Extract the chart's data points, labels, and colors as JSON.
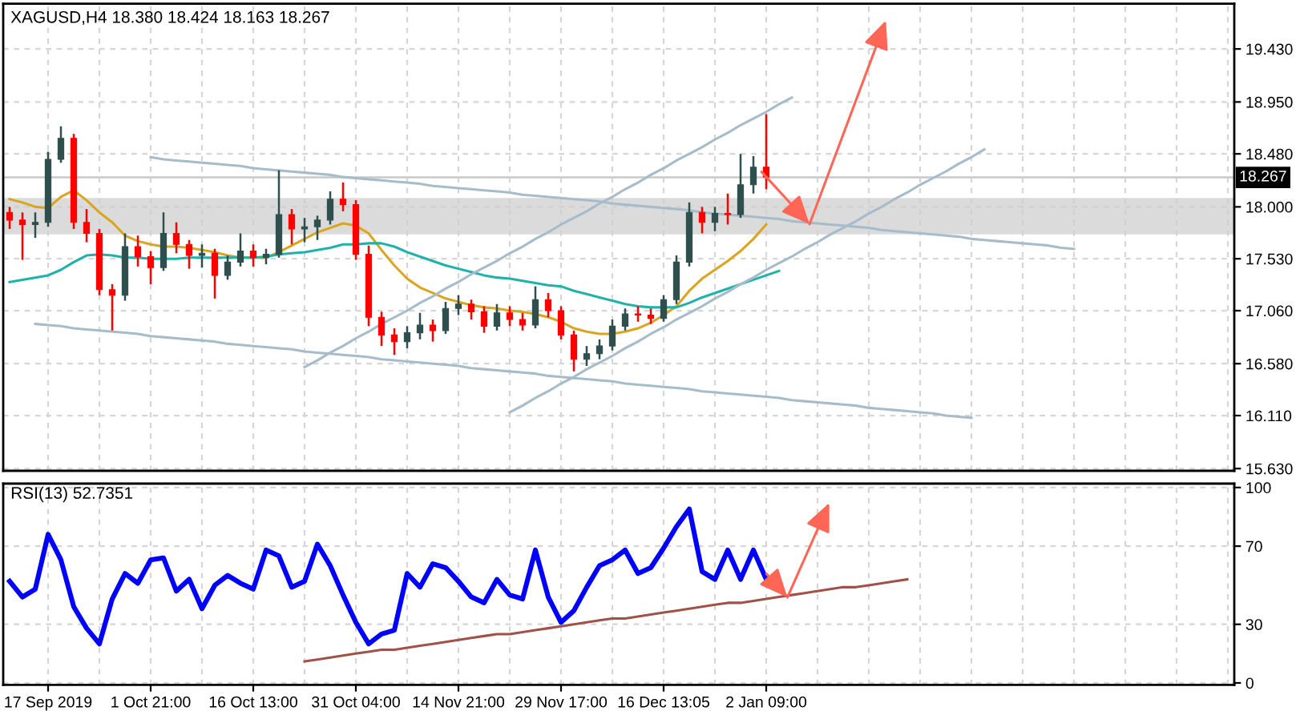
{
  "chart_data": [
    {
      "type": "candlestick",
      "title": "XAGUSD,H4 18.380 18.424 18.163 18.267",
      "categories": [
        null,
        null,
        null,
        null,
        null,
        null,
        null,
        null,
        null,
        null,
        null,
        null,
        null,
        null,
        null,
        null,
        null,
        null,
        null,
        null,
        null,
        null,
        null,
        null,
        null,
        null,
        null,
        null,
        null,
        null,
        null,
        null,
        null,
        null,
        null,
        null,
        null,
        null,
        null,
        null,
        null,
        null,
        null,
        null,
        null,
        null,
        null,
        null,
        null,
        null,
        null,
        null,
        null,
        null,
        null,
        null,
        null,
        null,
        null,
        null,
        null,
        null,
        null,
        null,
        null,
        null,
        null,
        null,
        null,
        null,
        null,
        null,
        null,
        null,
        null,
        null,
        null,
        null,
        null,
        null,
        null,
        null,
        null,
        null,
        null,
        null,
        null,
        null,
        null,
        null,
        null,
        null,
        null,
        null,
        null,
        null
      ],
      "ohlc": [
        [
          17.95,
          18.0,
          17.8,
          17.88
        ],
        [
          17.88,
          17.95,
          17.52,
          17.84
        ],
        [
          17.84,
          17.95,
          17.72,
          17.86
        ],
        [
          17.86,
          18.5,
          17.82,
          18.43
        ],
        [
          18.43,
          18.73,
          18.4,
          18.62
        ],
        [
          18.62,
          18.66,
          17.8,
          17.86
        ],
        [
          17.86,
          17.98,
          17.68,
          17.76
        ],
        [
          17.76,
          17.8,
          17.2,
          17.25
        ],
        [
          17.25,
          17.3,
          16.88,
          17.2
        ],
        [
          17.2,
          17.76,
          17.15,
          17.64
        ],
        [
          17.64,
          17.74,
          17.46,
          17.55
        ],
        [
          17.55,
          17.6,
          17.3,
          17.45
        ],
        [
          17.45,
          17.95,
          17.42,
          17.76
        ],
        [
          17.76,
          17.86,
          17.58,
          17.66
        ],
        [
          17.66,
          17.7,
          17.44,
          17.56
        ],
        [
          17.56,
          17.66,
          17.45,
          17.58
        ],
        [
          17.58,
          17.62,
          17.17,
          17.38
        ],
        [
          17.38,
          17.56,
          17.34,
          17.5
        ],
        [
          17.5,
          17.76,
          17.46,
          17.6
        ],
        [
          17.6,
          17.66,
          17.46,
          17.54
        ],
        [
          17.54,
          17.62,
          17.48,
          17.57
        ],
        [
          17.57,
          18.33,
          17.54,
          17.93
        ],
        [
          17.93,
          17.98,
          17.66,
          17.8
        ],
        [
          17.8,
          17.9,
          17.68,
          17.82
        ],
        [
          17.82,
          17.92,
          17.7,
          17.88
        ],
        [
          17.88,
          18.14,
          17.84,
          18.07
        ],
        [
          18.07,
          18.22,
          17.96,
          18.02
        ],
        [
          18.02,
          18.06,
          17.52,
          17.57
        ],
        [
          17.57,
          17.65,
          16.92,
          17.0
        ],
        [
          17.0,
          17.05,
          16.74,
          16.84
        ],
        [
          16.84,
          16.9,
          16.66,
          16.78
        ],
        [
          16.78,
          16.92,
          16.72,
          16.86
        ],
        [
          16.86,
          17.04,
          16.8,
          16.93
        ],
        [
          16.93,
          16.98,
          16.78,
          16.88
        ],
        [
          16.88,
          17.14,
          16.85,
          17.08
        ],
        [
          17.08,
          17.2,
          17.02,
          17.12
        ],
        [
          17.12,
          17.16,
          16.98,
          17.05
        ],
        [
          17.05,
          17.1,
          16.86,
          16.92
        ],
        [
          16.92,
          17.12,
          16.88,
          17.04
        ],
        [
          17.04,
          17.1,
          16.92,
          16.98
        ],
        [
          16.98,
          17.04,
          16.88,
          16.93
        ],
        [
          16.93,
          17.28,
          16.9,
          17.16
        ],
        [
          17.16,
          17.22,
          17.0,
          17.06
        ],
        [
          17.06,
          17.1,
          16.8,
          16.84
        ],
        [
          16.84,
          16.88,
          16.51,
          16.62
        ],
        [
          16.62,
          16.74,
          16.56,
          16.67
        ],
        [
          16.67,
          16.8,
          16.62,
          16.74
        ],
        [
          16.74,
          16.98,
          16.7,
          16.92
        ],
        [
          16.92,
          17.08,
          16.88,
          17.03
        ],
        [
          17.03,
          17.1,
          16.96,
          17.02
        ],
        [
          17.02,
          17.08,
          16.94,
          16.99
        ],
        [
          16.99,
          17.2,
          16.96,
          17.16
        ],
        [
          17.16,
          17.56,
          17.12,
          17.5
        ],
        [
          17.5,
          18.04,
          17.46,
          17.95
        ],
        [
          17.95,
          18.0,
          17.76,
          17.86
        ],
        [
          17.86,
          18.0,
          17.78,
          17.94
        ],
        [
          17.94,
          18.12,
          17.84,
          17.93
        ],
        [
          17.93,
          18.48,
          17.9,
          18.2
        ],
        [
          18.2,
          18.46,
          18.12,
          18.36
        ],
        [
          18.36,
          18.84,
          18.16,
          18.27
        ],
        null,
        null,
        null,
        null,
        null,
        null,
        null,
        null,
        null,
        null,
        null,
        null,
        null,
        null,
        null,
        null,
        null,
        null,
        null,
        null,
        null,
        null,
        null,
        null,
        null,
        null,
        null,
        null,
        null,
        null,
        null,
        null,
        null,
        null,
        null,
        null
      ],
      "colors": [
        "#ff0000",
        "#ff0000",
        "#2f4f4f",
        "#2f4f4f",
        "#2f4f4f",
        "#ff0000",
        "#ff0000",
        "#ff0000",
        "#ff0000",
        "#2f4f4f",
        "#ff0000",
        "#ff0000",
        "#2f4f4f",
        "#ff0000",
        "#ff0000",
        "#2f4f4f",
        "#ff0000",
        "#2f4f4f",
        "#2f4f4f",
        "#ff0000",
        "#2f4f4f",
        "#2f4f4f",
        "#ff0000",
        "#2f4f4f",
        "#2f4f4f",
        "#2f4f4f",
        "#ff0000",
        "#ff0000",
        "#ff0000",
        "#ff0000",
        "#ff0000",
        "#2f4f4f",
        "#2f4f4f",
        "#ff0000",
        "#2f4f4f",
        "#2f4f4f",
        "#ff0000",
        "#ff0000",
        "#2f4f4f",
        "#ff0000",
        "#ff0000",
        "#2f4f4f",
        "#ff0000",
        "#ff0000",
        "#ff0000",
        "#2f4f4f",
        "#2f4f4f",
        "#2f4f4f",
        "#2f4f4f",
        "#ff0000",
        "#ff0000",
        "#2f4f4f",
        "#2f4f4f",
        "#2f4f4f",
        "#ff0000",
        "#2f4f4f",
        "#ff0000",
        "#2f4f4f",
        "#2f4f4f",
        "#ff0000",
        null,
        null,
        null,
        null,
        null,
        null,
        null,
        null,
        null,
        null,
        null,
        null,
        null,
        null,
        null,
        null,
        null,
        null,
        null,
        null,
        null,
        null,
        null,
        null,
        null,
        null,
        null,
        null,
        null,
        null,
        null,
        null,
        null,
        null,
        null,
        null
      ],
      "series": [
        {
          "type": "line",
          "color": "#daa520",
          "values": [
            18.07,
            18.04,
            18.0,
            17.99,
            18.09,
            18.15,
            18.06,
            17.95,
            17.86,
            17.74,
            17.69,
            17.66,
            17.64,
            17.64,
            17.63,
            17.61,
            17.59,
            17.56,
            17.54,
            17.54,
            17.54,
            17.59,
            17.65,
            17.71,
            17.77,
            17.81,
            17.85,
            17.83,
            17.76,
            17.61,
            17.47,
            17.35,
            17.27,
            17.22,
            17.17,
            17.14,
            17.11,
            17.09,
            17.08,
            17.06,
            17.05,
            17.03,
            17.0,
            16.96,
            16.9,
            16.87,
            16.85,
            16.85,
            16.87,
            16.9,
            16.95,
            17.02,
            17.1,
            17.24,
            17.35,
            17.43,
            17.51,
            17.6,
            17.71,
            17.84,
            null,
            null,
            null,
            null,
            null,
            null,
            null,
            null,
            null,
            null,
            null,
            null,
            null,
            null,
            null,
            null,
            null,
            null,
            null,
            null,
            null,
            null,
            null,
            null,
            null,
            null,
            null,
            null,
            null,
            null,
            null,
            null,
            null,
            null,
            null,
            null
          ]
        },
        {
          "type": "line",
          "color": "#20b2aa",
          "values": [
            17.32,
            17.34,
            17.36,
            17.38,
            17.43,
            17.5,
            17.56,
            17.57,
            17.56,
            17.54,
            17.54,
            17.53,
            17.53,
            17.53,
            17.54,
            17.54,
            17.54,
            17.54,
            17.54,
            17.54,
            17.55,
            17.57,
            17.58,
            17.59,
            17.61,
            17.63,
            17.66,
            17.66,
            17.67,
            17.67,
            17.64,
            17.59,
            17.55,
            17.51,
            17.47,
            17.44,
            17.41,
            17.38,
            17.36,
            17.35,
            17.33,
            17.31,
            17.29,
            17.28,
            17.24,
            17.21,
            17.18,
            17.15,
            17.12,
            17.1,
            17.09,
            17.09,
            17.09,
            17.13,
            17.18,
            17.22,
            17.26,
            17.3,
            17.34,
            17.38,
            17.42,
            null,
            null,
            null,
            null,
            null,
            null,
            null,
            null,
            null,
            null,
            null,
            null,
            null,
            null,
            null,
            null,
            null,
            null,
            null,
            null,
            null,
            null,
            null,
            null,
            null,
            null,
            null,
            null,
            null,
            null,
            null,
            null,
            null,
            null,
            null
          ]
        },
        {
          "type": "line",
          "color": "#a6bccb",
          "values": [
            null,
            null,
            null,
            null,
            null,
            null,
            null,
            null,
            null,
            null,
            null,
            18.45,
            18.43,
            18.42,
            18.41,
            18.4,
            18.39,
            18.38,
            18.37,
            18.35,
            18.34,
            18.33,
            18.32,
            18.31,
            18.3,
            18.29,
            18.27,
            18.26,
            18.25,
            18.24,
            18.23,
            18.22,
            18.21,
            18.19,
            18.18,
            18.17,
            18.16,
            18.15,
            18.14,
            18.13,
            18.11,
            18.1,
            18.09,
            18.08,
            18.07,
            18.06,
            18.05,
            18.03,
            18.02,
            18.01,
            18.0,
            17.99,
            17.98,
            17.97,
            17.95,
            17.94,
            17.93,
            17.92,
            17.91,
            17.9,
            17.89,
            17.87,
            17.86,
            17.85,
            17.84,
            17.83,
            17.82,
            17.81,
            17.79,
            17.78,
            17.77,
            17.76,
            17.75,
            17.74,
            17.73,
            17.71,
            17.7,
            17.69,
            17.68,
            17.67,
            17.66,
            17.65,
            17.63,
            17.62,
            null,
            null,
            null,
            null,
            null,
            null,
            null,
            null,
            null,
            null,
            null,
            null
          ]
        },
        {
          "type": "line",
          "color": "#a6bccb",
          "values": [
            null,
            null,
            16.94,
            16.93,
            16.92,
            16.9,
            16.89,
            16.88,
            16.87,
            16.86,
            16.85,
            16.83,
            16.82,
            16.81,
            16.8,
            16.79,
            16.78,
            16.76,
            16.75,
            16.74,
            16.73,
            16.72,
            16.71,
            16.69,
            16.68,
            16.67,
            16.66,
            16.65,
            16.64,
            16.62,
            16.61,
            16.6,
            16.59,
            16.58,
            16.57,
            16.56,
            16.54,
            16.53,
            16.52,
            16.51,
            16.5,
            16.49,
            16.47,
            16.46,
            16.45,
            16.44,
            16.43,
            16.42,
            16.4,
            16.39,
            16.38,
            16.37,
            16.36,
            16.35,
            16.33,
            16.32,
            16.31,
            16.3,
            16.29,
            16.28,
            16.27,
            16.25,
            16.24,
            16.23,
            16.22,
            16.21,
            16.2,
            16.18,
            16.17,
            16.16,
            16.15,
            16.14,
            16.13,
            16.11,
            16.1,
            16.09,
            null,
            null,
            null,
            null,
            null,
            null,
            null,
            null,
            null,
            null,
            null,
            null,
            null,
            null,
            null,
            null,
            null,
            null,
            null,
            null
          ]
        },
        {
          "type": "line",
          "color": "#a6bccb",
          "values": [
            null,
            null,
            null,
            null,
            null,
            null,
            null,
            null,
            null,
            null,
            null,
            null,
            null,
            null,
            null,
            null,
            null,
            null,
            null,
            null,
            null,
            null,
            null,
            16.55,
            16.61,
            16.68,
            16.74,
            16.81,
            16.87,
            16.94,
            17.0,
            17.06,
            17.13,
            17.19,
            17.26,
            17.32,
            17.39,
            17.45,
            17.51,
            17.58,
            17.64,
            17.71,
            17.77,
            17.84,
            17.9,
            17.96,
            18.03,
            18.09,
            18.16,
            18.22,
            18.29,
            18.35,
            18.42,
            18.48,
            18.54,
            18.61,
            18.67,
            18.74,
            18.8,
            18.86,
            18.93,
            18.99,
            null,
            null,
            null,
            null,
            null,
            null,
            null,
            null,
            null,
            null,
            null,
            null,
            null,
            null,
            null,
            null,
            null,
            null,
            null,
            null,
            null,
            null,
            null,
            null,
            null,
            null,
            null,
            null,
            null,
            null,
            null,
            null,
            null,
            null
          ]
        },
        {
          "type": "line",
          "color": "#a6bccb",
          "values": [
            null,
            null,
            null,
            null,
            null,
            null,
            null,
            null,
            null,
            null,
            null,
            null,
            null,
            null,
            null,
            null,
            null,
            null,
            null,
            null,
            null,
            null,
            null,
            null,
            null,
            null,
            null,
            null,
            null,
            null,
            null,
            null,
            null,
            null,
            null,
            null,
            null,
            null,
            null,
            16.14,
            16.2,
            16.27,
            16.33,
            16.4,
            16.46,
            16.53,
            16.59,
            16.65,
            16.72,
            16.78,
            16.85,
            16.91,
            16.98,
            17.04,
            17.1,
            17.17,
            17.23,
            17.3,
            17.36,
            17.43,
            17.49,
            17.55,
            17.62,
            17.68,
            17.75,
            17.81,
            17.87,
            17.94,
            18.0,
            18.07,
            18.13,
            18.2,
            18.26,
            18.32,
            18.39,
            18.45,
            18.52,
            null,
            null,
            null,
            null,
            null,
            null,
            null,
            null,
            null,
            null,
            null,
            null,
            null,
            null,
            null,
            null,
            null,
            null,
            null
          ]
        }
      ],
      "bands": [
        {
          "axis": "y",
          "from": 17.75,
          "to": 18.08,
          "color": "#cfcfcf"
        }
      ],
      "ref_lines": [
        {
          "axis": "y",
          "value": 18.267,
          "label": "18.267",
          "color": "#c8c8c8"
        }
      ],
      "ylim": [
        15.61,
        19.84
      ],
      "yticks": [
        {
          "value": 19.43,
          "label": "19.430"
        },
        {
          "value": 18.95,
          "label": "18.950"
        },
        {
          "value": 18.48,
          "label": "18.480"
        },
        {
          "value": 18.0,
          "label": "18.000"
        },
        {
          "value": 17.53,
          "label": "17.530"
        },
        {
          "value": 17.06,
          "label": "17.060"
        },
        {
          "value": 16.58,
          "label": "16.580"
        },
        {
          "value": 16.11,
          "label": "16.110"
        },
        {
          "value": 15.63,
          "label": "15.630"
        }
      ],
      "grid": true
    },
    {
      "type": "line",
      "title": "RSI(13) 52.7351",
      "categories": [
        null,
        null,
        null,
        "17 Sep 2019",
        null,
        null,
        null,
        null,
        null,
        null,
        null,
        "1 Oct 21:00",
        null,
        null,
        null,
        null,
        null,
        null,
        null,
        "16 Oct 13:00",
        null,
        null,
        null,
        null,
        null,
        null,
        null,
        "31 Oct 04:00",
        null,
        null,
        null,
        null,
        null,
        null,
        null,
        "14 Nov 21:00",
        null,
        null,
        null,
        null,
        null,
        null,
        null,
        "29 Nov 17:00",
        null,
        null,
        null,
        null,
        null,
        null,
        null,
        "16 Dec 13:05",
        null,
        null,
        null,
        null,
        null,
        null,
        null,
        "2 Jan 09:00",
        null,
        null,
        null,
        null,
        null,
        null,
        null,
        null,
        null,
        null,
        null,
        null,
        null,
        null,
        null,
        null,
        null,
        null,
        null,
        null,
        null,
        null,
        null,
        null,
        null,
        null,
        null,
        null,
        null,
        null,
        null,
        null,
        null,
        null,
        null,
        null
      ],
      "series": [
        {
          "type": "line",
          "color": "#0000ff",
          "values": [
            52,
            44,
            48,
            76,
            63,
            39,
            28,
            20,
            43,
            56,
            51,
            63,
            64,
            47,
            53,
            38,
            50,
            55,
            51,
            48,
            68,
            65,
            49,
            52,
            71,
            60,
            45,
            31,
            20,
            25,
            27,
            56,
            49,
            61,
            59,
            52,
            44,
            41,
            53,
            45,
            43,
            68,
            44,
            31,
            37,
            49,
            60,
            63,
            68,
            56,
            59,
            69,
            80,
            89,
            57,
            53,
            68,
            53,
            68,
            53,
            null,
            null,
            null,
            null,
            null,
            null,
            null,
            null,
            null,
            null,
            null,
            null,
            null,
            null,
            null,
            null,
            null,
            null,
            null,
            null,
            null,
            null,
            null,
            null,
            null,
            null,
            null,
            null,
            null,
            null,
            null,
            null,
            null,
            null,
            null,
            null
          ]
        },
        {
          "type": "line",
          "color": "#a0524a",
          "values": [
            null,
            null,
            null,
            null,
            null,
            null,
            null,
            null,
            null,
            null,
            null,
            null,
            null,
            null,
            null,
            null,
            null,
            null,
            null,
            null,
            null,
            null,
            null,
            11,
            12,
            13,
            14,
            15,
            16,
            17,
            17,
            18,
            19,
            20,
            21,
            22,
            23,
            24,
            25,
            25,
            26,
            27,
            28,
            29,
            30,
            31,
            32,
            33,
            33,
            34,
            35,
            36,
            37,
            38,
            39,
            40,
            41,
            41,
            42,
            43,
            44,
            45,
            46,
            47,
            48,
            49,
            49,
            50,
            51,
            52,
            53,
            null,
            null,
            null,
            null,
            null,
            null,
            null,
            null,
            null,
            null,
            null,
            null,
            null,
            null,
            null,
            null,
            null,
            null,
            null,
            null,
            null,
            null,
            null,
            null,
            null
          ]
        }
      ],
      "ylim": [
        -1,
        102
      ],
      "yticks": [
        0,
        30,
        70,
        100
      ],
      "grid": true
    }
  ]
}
